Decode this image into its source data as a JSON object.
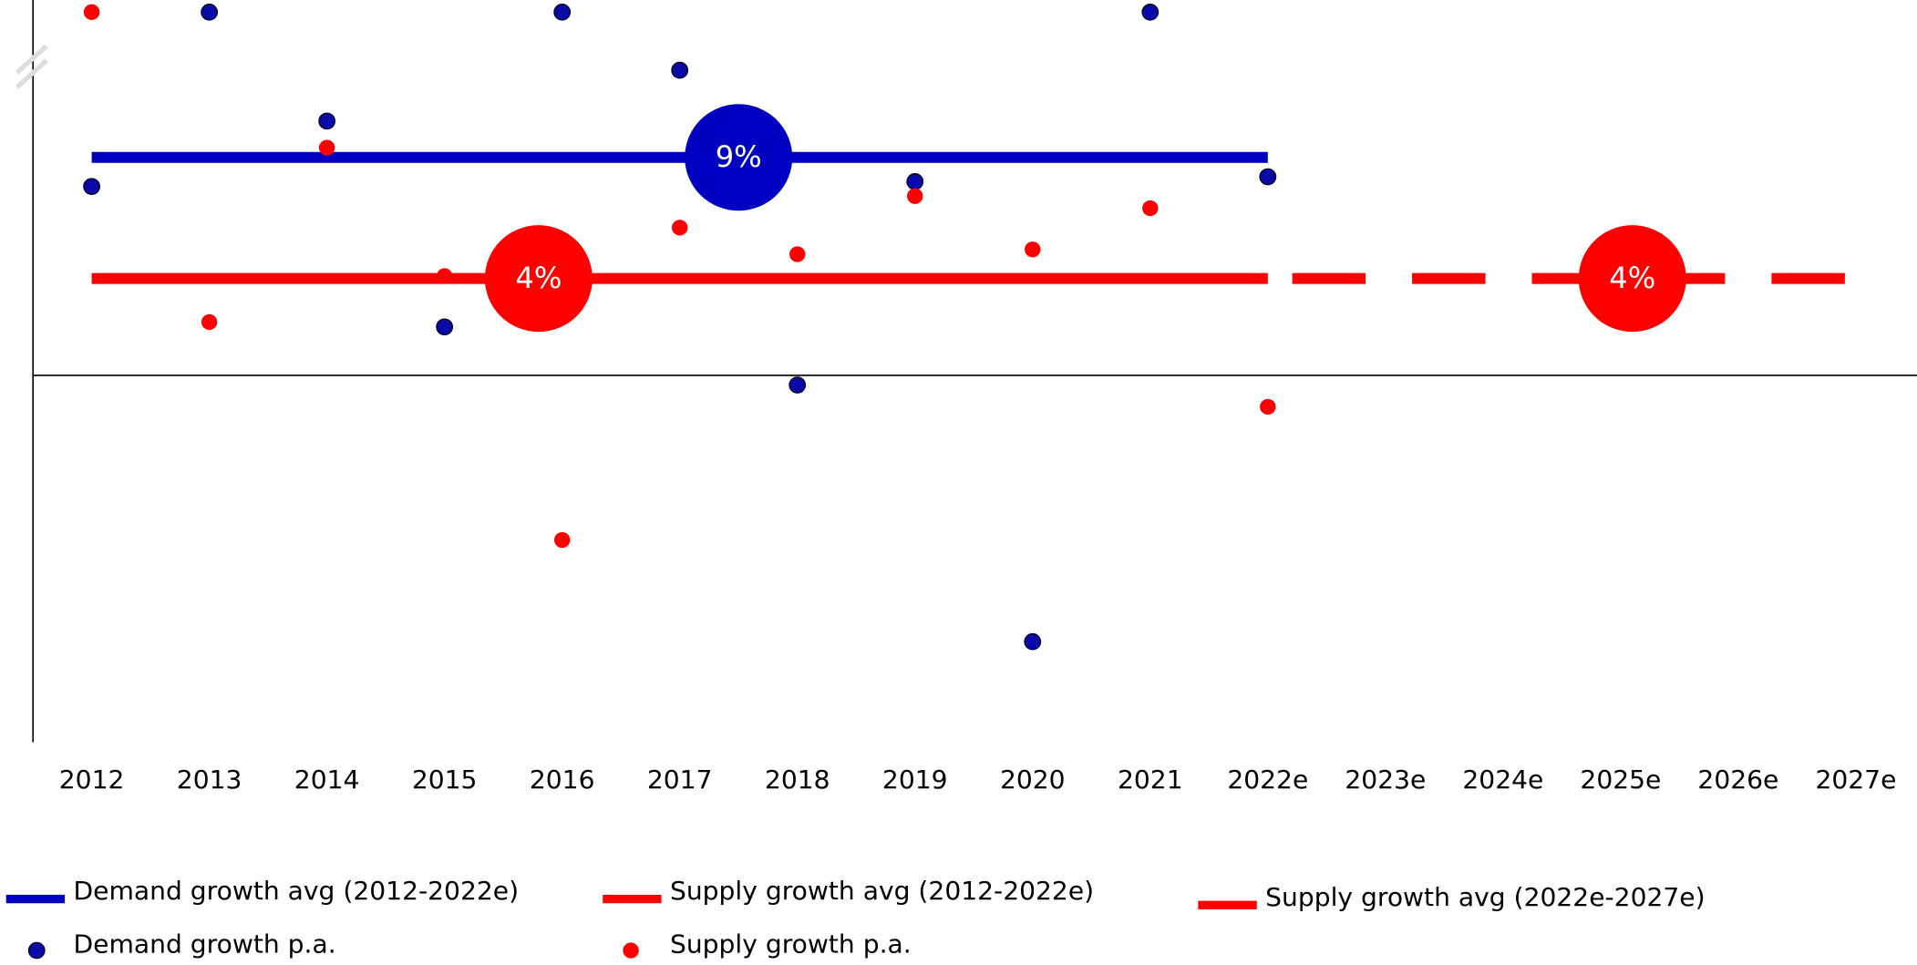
{
  "chart_data": {
    "type": "scatter",
    "categories": [
      "2012",
      "2013",
      "2014",
      "2015",
      "2016",
      "2017",
      "2018",
      "2019",
      "2020",
      "2021",
      "2022e",
      "2023e",
      "2024e",
      "2025e",
      "2026e",
      "2027e"
    ],
    "ylim": [
      -15.15,
      15.5
    ],
    "series": [
      {
        "name": "Demand growth avg (2012-2022e)",
        "mode": "line",
        "color": "#0000c0",
        "label": "9%",
        "values": [
          9,
          9,
          9,
          9,
          9,
          9,
          9,
          9,
          9,
          9,
          9,
          null,
          null,
          null,
          null,
          null
        ]
      },
      {
        "name": "Supply growth avg (2012-2022e)",
        "mode": "line",
        "color": "#ff0000",
        "label": "4%",
        "values": [
          4,
          4,
          4,
          4,
          4,
          4,
          4,
          4,
          4,
          4,
          4,
          null,
          null,
          null,
          null,
          null
        ]
      },
      {
        "name": "Supply growth avg (2022e-2027e)",
        "mode": "line",
        "dashed": true,
        "color": "#ff0000",
        "label": "4%",
        "values": [
          null,
          null,
          null,
          null,
          null,
          null,
          null,
          null,
          null,
          null,
          4,
          4,
          4,
          4,
          4,
          4
        ]
      },
      {
        "name": "Demand growth p.a.",
        "mode": "markers",
        "color": "#0a0aa8",
        "values": [
          7.8,
          15,
          10.5,
          2,
          15,
          12.6,
          -0.4,
          8,
          -11,
          15,
          8.2,
          null,
          null,
          null,
          null,
          null
        ]
      },
      {
        "name": "Supply growth p.a.",
        "mode": "markers",
        "color": "#ff0000",
        "values": [
          15,
          2.2,
          9.4,
          4.1,
          -6.8,
          6.1,
          5,
          7.4,
          5.2,
          6.9,
          -1.3,
          null,
          null,
          null,
          null,
          null
        ]
      }
    ]
  }
}
